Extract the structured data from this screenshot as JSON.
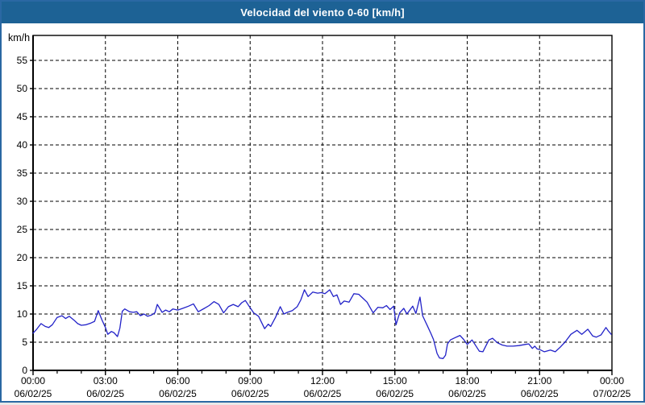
{
  "window": {
    "title": "Velocidad del viento 0-60 [km/h]"
  },
  "colors": {
    "titlebar_bg": "#1d6295",
    "titlebar_text": "#ffffff",
    "outer_border": "#2a68a3",
    "plot_bg": "#ffffff",
    "axis": "#000000",
    "grid": "#000000",
    "line": "#2222c8"
  },
  "chart_data": {
    "type": "line",
    "title": "Velocidad del viento 0-60 [km/h]",
    "xlabel": "",
    "ylabel": "km/h",
    "ylim": [
      0,
      60
    ],
    "y_ticks": [
      0,
      5,
      10,
      15,
      20,
      25,
      30,
      35,
      40,
      45,
      50,
      55
    ],
    "x_hours_range": [
      0,
      24
    ],
    "x_minor_tick_hours": 1,
    "grid": "dashed",
    "legend": "none",
    "x_major_ticks": [
      {
        "hour": 0,
        "time": "00:00",
        "date": "06/02/25"
      },
      {
        "hour": 3,
        "time": "03:00",
        "date": "06/02/25"
      },
      {
        "hour": 6,
        "time": "06:00",
        "date": "06/02/25"
      },
      {
        "hour": 9,
        "time": "09:00",
        "date": "06/02/25"
      },
      {
        "hour": 12,
        "time": "12:00",
        "date": "06/02/25"
      },
      {
        "hour": 15,
        "time": "15:00",
        "date": "06/02/25"
      },
      {
        "hour": 18,
        "time": "18:00",
        "date": "06/02/25"
      },
      {
        "hour": 21,
        "time": "21:00",
        "date": "06/02/25"
      },
      {
        "hour": 24,
        "time": "00:00",
        "date": "07/02/25"
      }
    ],
    "series": [
      {
        "name": "Velocidad del viento",
        "unit": "km/h",
        "color": "#2222c8",
        "points": [
          [
            0.0,
            6.6
          ],
          [
            0.15,
            7.3
          ],
          [
            0.33,
            8.3
          ],
          [
            0.5,
            7.8
          ],
          [
            0.65,
            7.6
          ],
          [
            0.8,
            8.1
          ],
          [
            1.0,
            9.4
          ],
          [
            1.2,
            9.7
          ],
          [
            1.35,
            9.2
          ],
          [
            1.5,
            9.6
          ],
          [
            1.7,
            8.9
          ],
          [
            1.85,
            8.3
          ],
          [
            2.0,
            8.0
          ],
          [
            2.2,
            8.1
          ],
          [
            2.4,
            8.4
          ],
          [
            2.55,
            8.7
          ],
          [
            2.7,
            10.6
          ],
          [
            2.85,
            9.0
          ],
          [
            3.0,
            7.6
          ],
          [
            3.1,
            6.4
          ],
          [
            3.25,
            6.9
          ],
          [
            3.35,
            6.7
          ],
          [
            3.5,
            6.0
          ],
          [
            3.6,
            7.5
          ],
          [
            3.7,
            10.5
          ],
          [
            3.8,
            10.9
          ],
          [
            4.0,
            10.4
          ],
          [
            4.15,
            10.3
          ],
          [
            4.3,
            10.4
          ],
          [
            4.45,
            9.7
          ],
          [
            4.6,
            10.0
          ],
          [
            4.75,
            9.6
          ],
          [
            4.9,
            9.8
          ],
          [
            5.05,
            10.2
          ],
          [
            5.15,
            11.7
          ],
          [
            5.35,
            10.3
          ],
          [
            5.5,
            10.7
          ],
          [
            5.65,
            10.4
          ],
          [
            5.8,
            10.9
          ],
          [
            6.0,
            10.7
          ],
          [
            6.2,
            11.0
          ],
          [
            6.45,
            11.4
          ],
          [
            6.65,
            11.8
          ],
          [
            6.85,
            10.4
          ],
          [
            7.1,
            11.0
          ],
          [
            7.3,
            11.5
          ],
          [
            7.5,
            12.2
          ],
          [
            7.7,
            11.7
          ],
          [
            7.9,
            10.2
          ],
          [
            8.1,
            11.3
          ],
          [
            8.3,
            11.7
          ],
          [
            8.5,
            11.3
          ],
          [
            8.65,
            12.0
          ],
          [
            8.8,
            12.4
          ],
          [
            9.0,
            11.1
          ],
          [
            9.15,
            10.2
          ],
          [
            9.35,
            9.6
          ],
          [
            9.6,
            7.4
          ],
          [
            9.75,
            8.2
          ],
          [
            9.85,
            7.8
          ],
          [
            10.05,
            9.4
          ],
          [
            10.25,
            11.3
          ],
          [
            10.4,
            10.0
          ],
          [
            10.55,
            10.3
          ],
          [
            10.75,
            10.6
          ],
          [
            10.95,
            11.3
          ],
          [
            11.1,
            12.5
          ],
          [
            11.25,
            14.3
          ],
          [
            11.4,
            13.1
          ],
          [
            11.6,
            13.9
          ],
          [
            11.8,
            13.7
          ],
          [
            11.95,
            13.8
          ],
          [
            12.1,
            13.6
          ],
          [
            12.3,
            14.3
          ],
          [
            12.45,
            13.1
          ],
          [
            12.6,
            13.4
          ],
          [
            12.75,
            11.7
          ],
          [
            12.9,
            12.3
          ],
          [
            13.1,
            12.1
          ],
          [
            13.3,
            13.6
          ],
          [
            13.5,
            13.5
          ],
          [
            13.7,
            12.7
          ],
          [
            13.85,
            12.1
          ],
          [
            14.1,
            10.2
          ],
          [
            14.3,
            11.2
          ],
          [
            14.5,
            11.1
          ],
          [
            14.65,
            11.5
          ],
          [
            14.8,
            10.8
          ],
          [
            14.95,
            11.4
          ],
          [
            15.05,
            8.1
          ],
          [
            15.2,
            10.2
          ],
          [
            15.37,
            11.0
          ],
          [
            15.5,
            10.0
          ],
          [
            15.74,
            11.4
          ],
          [
            15.87,
            10.1
          ],
          [
            16.04,
            13.0
          ],
          [
            16.15,
            9.7
          ],
          [
            16.25,
            8.8
          ],
          [
            16.35,
            7.9
          ],
          [
            16.5,
            6.5
          ],
          [
            16.6,
            5.5
          ],
          [
            16.75,
            3.0
          ],
          [
            16.85,
            2.2
          ],
          [
            17.0,
            2.1
          ],
          [
            17.1,
            2.7
          ],
          [
            17.18,
            4.7
          ],
          [
            17.3,
            5.4
          ],
          [
            17.45,
            5.7
          ],
          [
            17.6,
            6.0
          ],
          [
            17.7,
            6.2
          ],
          [
            17.85,
            5.5
          ],
          [
            18.0,
            4.6
          ],
          [
            18.2,
            5.4
          ],
          [
            18.5,
            3.4
          ],
          [
            18.65,
            3.3
          ],
          [
            18.9,
            5.4
          ],
          [
            19.05,
            5.7
          ],
          [
            19.25,
            4.9
          ],
          [
            19.45,
            4.5
          ],
          [
            19.65,
            4.3
          ],
          [
            19.9,
            4.3
          ],
          [
            20.15,
            4.4
          ],
          [
            20.4,
            4.6
          ],
          [
            20.55,
            4.7
          ],
          [
            20.7,
            3.9
          ],
          [
            20.8,
            4.3
          ],
          [
            20.9,
            3.8
          ],
          [
            21.0,
            3.7
          ],
          [
            21.2,
            3.3
          ],
          [
            21.45,
            3.6
          ],
          [
            21.65,
            3.3
          ],
          [
            21.85,
            4.1
          ],
          [
            22.05,
            5.0
          ],
          [
            22.3,
            6.4
          ],
          [
            22.55,
            7.1
          ],
          [
            22.75,
            6.4
          ],
          [
            23.0,
            7.3
          ],
          [
            23.2,
            6.1
          ],
          [
            23.35,
            5.9
          ],
          [
            23.55,
            6.3
          ],
          [
            23.75,
            7.6
          ],
          [
            23.85,
            7.0
          ],
          [
            23.97,
            6.4
          ]
        ]
      }
    ]
  }
}
